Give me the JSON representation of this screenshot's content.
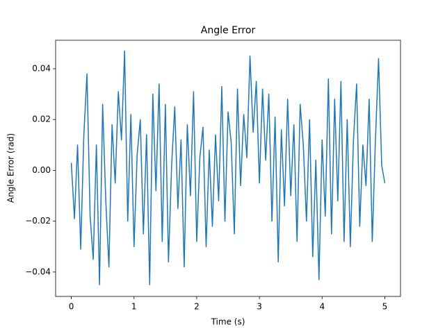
{
  "chart_data": {
    "type": "line",
    "title": "Angle Error",
    "x_label": "Time (s)",
    "y_label": "Angle Error (rad)",
    "x": [
      0,
      0.05,
      0.1,
      0.15,
      0.2,
      0.25,
      0.3,
      0.35,
      0.4,
      0.45,
      0.5,
      0.55,
      0.6,
      0.65,
      0.7,
      0.75,
      0.8,
      0.85,
      0.9,
      0.95,
      1,
      1.05,
      1.1,
      1.15,
      1.2,
      1.25,
      1.3,
      1.35,
      1.4,
      1.45,
      1.5,
      1.55,
      1.6,
      1.65,
      1.7,
      1.75,
      1.8,
      1.85,
      1.9,
      1.95,
      2,
      2.05,
      2.1,
      2.15,
      2.2,
      2.25,
      2.3,
      2.35,
      2.4,
      2.45,
      2.5,
      2.55,
      2.6,
      2.65,
      2.7,
      2.75,
      2.8,
      2.85,
      2.9,
      2.95,
      3,
      3.05,
      3.1,
      3.15,
      3.2,
      3.25,
      3.3,
      3.35,
      3.4,
      3.45,
      3.5,
      3.55,
      3.6,
      3.65,
      3.7,
      3.75,
      3.8,
      3.85,
      3.9,
      3.95,
      4,
      4.05,
      4.1,
      4.15,
      4.2,
      4.25,
      4.3,
      4.35,
      4.4,
      4.45,
      4.5,
      4.55,
      4.6,
      4.65,
      4.7,
      4.75,
      4.8,
      4.85,
      4.9,
      4.95,
      5
    ],
    "series": [
      {
        "color": "#1f77b4",
        "values": [
          0.003,
          -0.019,
          0.01,
          -0.031,
          0.014,
          0.038,
          -0.018,
          -0.035,
          0.01,
          -0.045,
          0.026,
          -0.012,
          -0.038,
          0.018,
          -0.005,
          0.031,
          0.012,
          0.047,
          -0.02,
          0.022,
          -0.03,
          0.006,
          0.02,
          -0.025,
          0.014,
          -0.045,
          0.03,
          -0.008,
          0.034,
          -0.028,
          0.026,
          -0.036,
          0.002,
          0.025,
          -0.015,
          0.012,
          -0.038,
          0.018,
          -0.01,
          0.031,
          -0.028,
          0.005,
          0.017,
          -0.03,
          0.008,
          -0.022,
          0.014,
          -0.012,
          0.033,
          -0.02,
          0.023,
          0.011,
          -0.025,
          0.032,
          -0.006,
          0.022,
          0.005,
          0.045,
          0.015,
          0.035,
          -0.005,
          0.032,
          0.004,
          0.03,
          -0.02,
          0.021,
          -0.036,
          0.016,
          -0.014,
          0.028,
          -0.01,
          0.018,
          -0.028,
          0.026,
          0.01,
          -0.02,
          0.02,
          -0.034,
          0.004,
          -0.043,
          0.012,
          -0.018,
          0.036,
          -0.025,
          0.028,
          -0.012,
          0.035,
          -0.028,
          0.02,
          -0.03,
          0.012,
          0.034,
          -0.022,
          0.01,
          -0.006,
          0.028,
          -0.028,
          0.012,
          0.044,
          0.002,
          -0.005
        ]
      }
    ],
    "xlim": [
      -0.25,
      5.25
    ],
    "ylim": [
      -0.0496,
      0.0512
    ],
    "xticks": [
      0,
      1,
      2,
      3,
      4,
      5
    ],
    "yticks": [
      {
        "value": -0.04,
        "label": "−0.04"
      },
      {
        "value": -0.02,
        "label": "−0.02"
      },
      {
        "value": 0,
        "label": "0.00"
      },
      {
        "value": 0.02,
        "label": "0.02"
      },
      {
        "value": 0.04,
        "label": "0.04"
      }
    ]
  }
}
